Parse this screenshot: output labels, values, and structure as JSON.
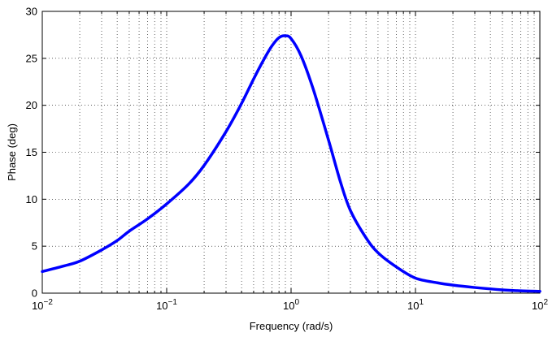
{
  "chart_data": {
    "type": "line",
    "xlabel": "Frequency (rad/s)",
    "ylabel": "Phase (deg)",
    "xscale": "log",
    "xlim": [
      0.01,
      100
    ],
    "ylim": [
      0,
      30
    ],
    "grid": true,
    "color": "#0000ff",
    "x_ticks": [
      {
        "value": 0.01,
        "base": "10",
        "exp": "−2"
      },
      {
        "value": 0.1,
        "base": "10",
        "exp": "−1"
      },
      {
        "value": 1,
        "base": "10",
        "exp": "0"
      },
      {
        "value": 10,
        "base": "10",
        "exp": "1"
      },
      {
        "value": 100,
        "base": "10",
        "exp": "2"
      }
    ],
    "y_ticks": [
      0,
      5,
      10,
      15,
      20,
      25,
      30
    ],
    "series": [
      {
        "x": [
          0.01,
          0.015,
          0.02,
          0.03,
          0.04,
          0.05,
          0.07,
          0.1,
          0.15,
          0.2,
          0.3,
          0.4,
          0.5,
          0.6,
          0.7,
          0.8,
          0.9,
          1.0,
          1.2,
          1.5,
          2,
          2.5,
          3,
          4,
          5,
          7,
          10,
          15,
          20,
          30,
          50,
          70,
          100
        ],
        "y": [
          2.3,
          2.9,
          3.4,
          4.6,
          5.6,
          6.6,
          7.9,
          9.5,
          11.6,
          13.6,
          17.2,
          20.2,
          22.8,
          24.8,
          26.3,
          27.2,
          27.4,
          27.1,
          25.3,
          21.8,
          16.3,
          11.8,
          8.8,
          5.9,
          4.3,
          2.8,
          1.6,
          1.1,
          0.85,
          0.6,
          0.35,
          0.25,
          0.2
        ]
      }
    ]
  }
}
